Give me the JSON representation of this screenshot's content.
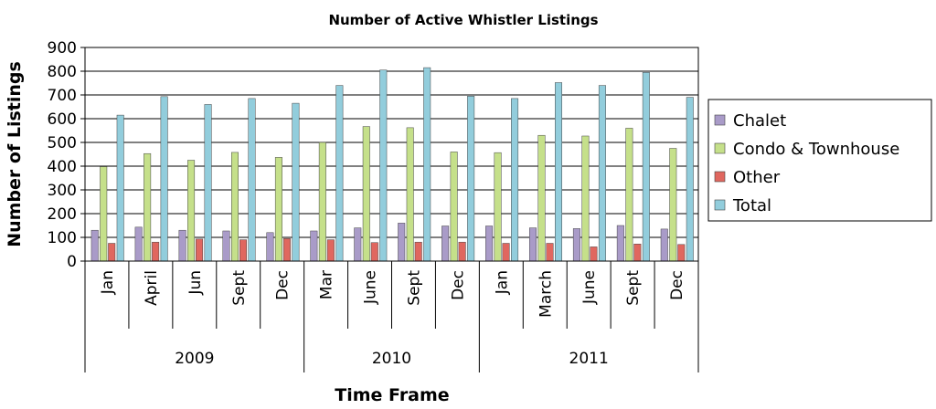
{
  "chart_data": {
    "type": "bar",
    "title": "Number of Active Whistler Listings",
    "xlabel": "Time Frame",
    "ylabel": "Number of Listings",
    "ylim": [
      0,
      900
    ],
    "yticks": [
      0,
      100,
      200,
      300,
      400,
      500,
      600,
      700,
      800,
      900
    ],
    "grid": true,
    "legend_position": "right",
    "categories": [
      "Jan",
      "April",
      "Jun",
      "Sept",
      "Dec",
      "Mar",
      "June",
      "Sept",
      "Dec",
      "Jan",
      "March",
      "June",
      "Sept",
      "Dec"
    ],
    "groups": [
      {
        "label": "2009",
        "count": 5
      },
      {
        "label": "2010",
        "count": 4
      },
      {
        "label": "2011",
        "count": 5
      }
    ],
    "series": [
      {
        "name": "Chalet",
        "color": "#A99BC8",
        "values": [
          130,
          143,
          130,
          127,
          120,
          127,
          140,
          160,
          148,
          148,
          140,
          137,
          150,
          135
        ]
      },
      {
        "name": "Condo & Townhouse",
        "color": "#C5E08A",
        "values": [
          398,
          453,
          425,
          458,
          437,
          500,
          567,
          562,
          460,
          457,
          530,
          527,
          560,
          475
        ]
      },
      {
        "name": "Other",
        "color": "#E0675F",
        "values": [
          75,
          80,
          93,
          90,
          95,
          90,
          78,
          80,
          80,
          75,
          75,
          60,
          72,
          70
        ]
      },
      {
        "name": "Total",
        "color": "#92CDDC",
        "values": [
          615,
          693,
          660,
          685,
          665,
          740,
          805,
          815,
          695,
          685,
          752,
          740,
          795,
          690
        ]
      }
    ]
  }
}
